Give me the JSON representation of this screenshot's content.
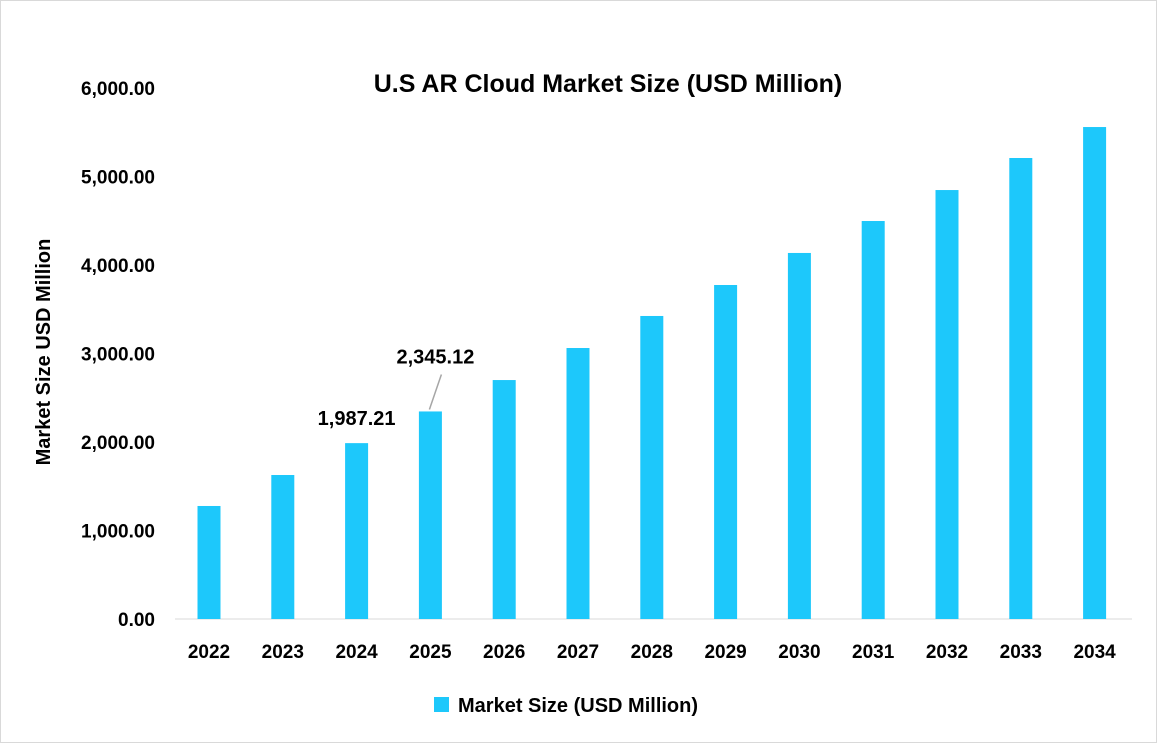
{
  "chart_data": {
    "type": "bar",
    "title": "U.S AR Cloud Market Size (USD Million)",
    "xlabel": "",
    "ylabel": "Market Size USD Million",
    "categories": [
      "2022",
      "2023",
      "2024",
      "2025",
      "2026",
      "2027",
      "2028",
      "2029",
      "2030",
      "2031",
      "2032",
      "2033",
      "2034"
    ],
    "series": [
      {
        "name": "Market Size (USD Million)",
        "values": [
          1277,
          1627,
          1987.21,
          2345.12,
          2700,
          3062,
          3424,
          3774,
          4136,
          4497,
          4847,
          5209,
          5559
        ]
      }
    ],
    "data_labels": [
      {
        "category": "2024",
        "text": "1,987.21"
      },
      {
        "category": "2025",
        "text": "2,345.12"
      }
    ],
    "ylim": [
      0,
      6000
    ],
    "yticks": [
      "0.00",
      "1,000.00",
      "2,000.00",
      "3,000.00",
      "4,000.00",
      "5,000.00",
      "6,000.00"
    ],
    "grid": false,
    "legend": "bottom",
    "color": "#1DC8FB"
  }
}
